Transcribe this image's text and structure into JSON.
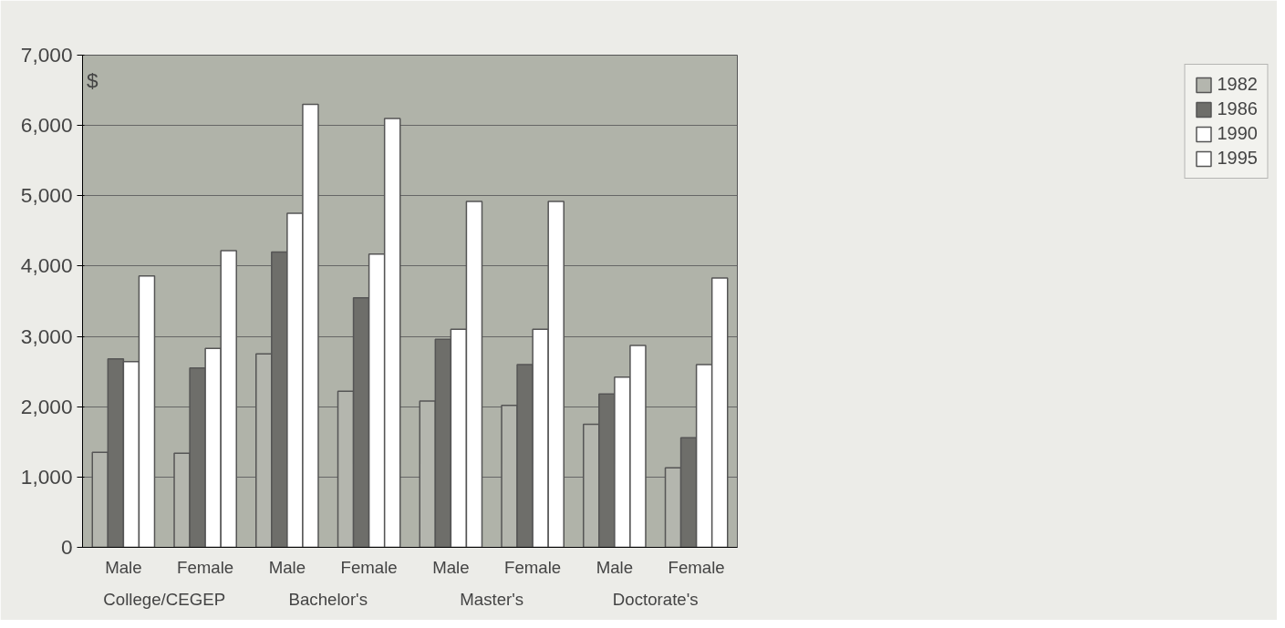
{
  "chart_data": {
    "type": "bar",
    "ylabel": "$",
    "categories": [
      "Male",
      "Female",
      "Male",
      "Female",
      "Male",
      "Female",
      "Male",
      "Female"
    ],
    "series": [
      {
        "name": "1982",
        "color": "#b4b6ae",
        "values": [
          1350,
          1340,
          2750,
          2220,
          2080,
          2020,
          1750,
          1130
        ]
      },
      {
        "name": "1986",
        "color": "#6e6e6a",
        "values": [
          2680,
          2550,
          4200,
          3550,
          2960,
          2600,
          2180,
          1560
        ]
      },
      {
        "name": "1990",
        "color": "#ffffff",
        "values": [
          2640,
          2830,
          4750,
          4170,
          3100,
          3100,
          2420,
          2600
        ]
      },
      {
        "name": "1995",
        "color": "#ffffff",
        "values": [
          3860,
          4220,
          6300,
          6100,
          4920,
          4920,
          2870,
          3830
        ]
      }
    ],
    "annotations": [
      "College/CEGEP",
      "Bachelor's",
      "Master's",
      "Doctorate's"
    ],
    "ylim": [
      0,
      7000
    ],
    "yticks": [
      {
        "value": 0,
        "label": "0"
      },
      {
        "value": 1000,
        "label": "1,000"
      },
      {
        "value": 2000,
        "label": "2,000"
      },
      {
        "value": 3000,
        "label": "3,000"
      },
      {
        "value": 4000,
        "label": "4,000"
      },
      {
        "value": 5000,
        "label": "5,000"
      },
      {
        "value": 6000,
        "label": "6,000"
      },
      {
        "value": 7000,
        "label": "7,000"
      }
    ],
    "grid": "y",
    "legend": "right"
  }
}
